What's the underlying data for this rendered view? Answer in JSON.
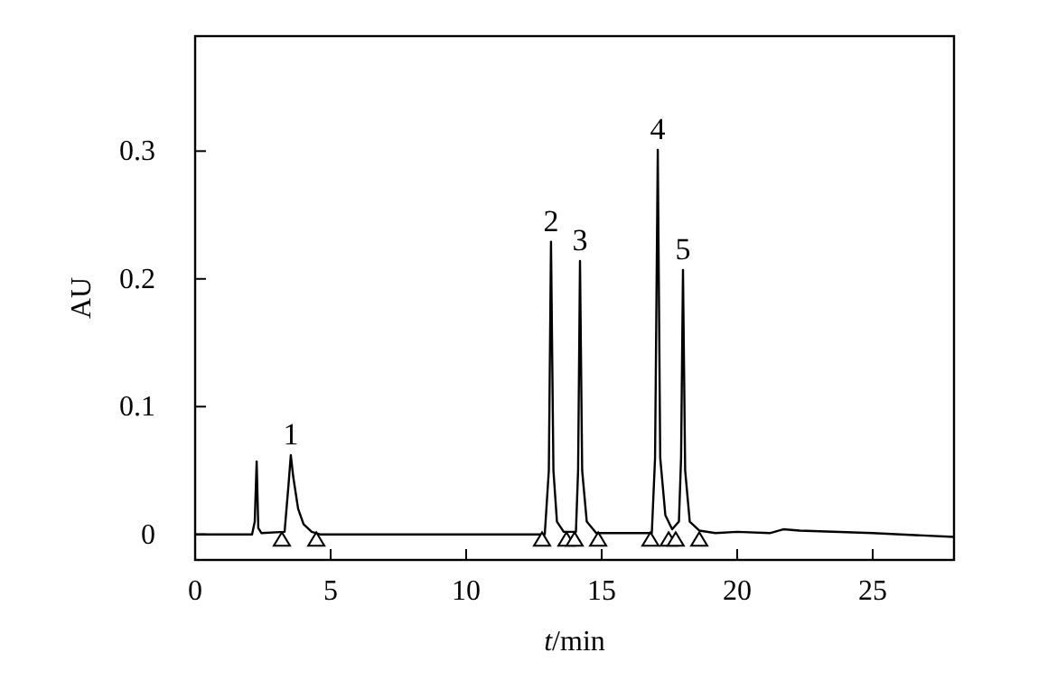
{
  "chart_data": {
    "type": "line",
    "xlabel": "t/min",
    "ylabel": "AU",
    "xlim": [
      0,
      28
    ],
    "ylim": [
      -0.02,
      0.39
    ],
    "xticks": [
      0,
      5,
      10,
      15,
      20,
      25
    ],
    "yticks": [
      0,
      0.1,
      0.2,
      0.3
    ],
    "grid": false,
    "series": [
      {
        "color": "#000000",
        "marker": "none",
        "x": [
          0,
          2.1,
          2.2,
          2.27,
          2.33,
          2.45,
          3.3,
          3.45,
          3.53,
          3.62,
          3.8,
          4.0,
          4.3,
          4.6,
          12.9,
          13.05,
          13.13,
          13.22,
          13.35,
          13.6,
          14.05,
          14.13,
          14.2,
          14.28,
          14.45,
          14.8,
          16.85,
          16.97,
          17.07,
          17.16,
          17.35,
          17.6,
          17.85,
          17.93,
          18.0,
          18.08,
          18.25,
          18.6,
          19.2,
          20,
          21.2,
          21.7,
          22.3,
          25,
          28
        ],
        "values": [
          0,
          0,
          0.01,
          0.057,
          0.005,
          0.001,
          0.002,
          0.04,
          0.062,
          0.045,
          0.02,
          0.008,
          0.002,
          0,
          0,
          0.05,
          0.229,
          0.05,
          0.01,
          0.002,
          0.002,
          0.05,
          0.214,
          0.05,
          0.01,
          0.001,
          0.001,
          0.06,
          0.301,
          0.06,
          0.015,
          0.004,
          0.01,
          0.06,
          0.207,
          0.05,
          0.01,
          0.003,
          0.001,
          0.002,
          0.001,
          0.004,
          0.003,
          0.001,
          -0.002
        ]
      },
      {
        "type": "scatter",
        "color": "#000000",
        "marker": "triangle",
        "x": [
          3.2,
          4.47,
          12.8,
          13.7,
          14.0,
          14.87,
          16.8,
          17.47,
          17.73,
          18.6
        ],
        "values": [
          -0.004,
          -0.004,
          -0.004,
          -0.004,
          -0.004,
          -0.004,
          -0.004,
          -0.004,
          -0.004,
          -0.004
        ]
      }
    ],
    "annotations": [
      {
        "text": "1",
        "x": 3.53,
        "y": 0.062
      },
      {
        "text": "2",
        "x": 13.13,
        "y": 0.229
      },
      {
        "text": "3",
        "x": 14.2,
        "y": 0.214
      },
      {
        "text": "4",
        "x": 17.07,
        "y": 0.301
      },
      {
        "text": "5",
        "x": 18.0,
        "y": 0.207
      }
    ]
  }
}
